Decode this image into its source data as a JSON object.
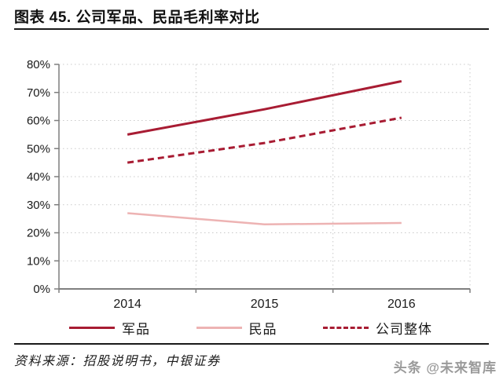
{
  "title": "图表 45. 公司军品、民品毛利率对比",
  "source_note": "资料来源：招股说明书，中银证券",
  "watermark": "头条 @未来智库",
  "colors": {
    "accent_red": "#A81C33",
    "light_pink": "#EDB3B3",
    "grid": "#C9C9C9",
    "axis": "#7F7F7F",
    "text": "#1A1A1A"
  },
  "chart_data": {
    "type": "line",
    "categories": [
      "2014",
      "2015",
      "2016"
    ],
    "series": [
      {
        "name": "军品",
        "values": [
          55,
          64,
          74
        ],
        "color": "#A81C33",
        "style": "solid",
        "width": 3
      },
      {
        "name": "民品",
        "values": [
          27,
          23,
          23.5
        ],
        "color": "#EDB3B3",
        "style": "solid",
        "width": 2.5
      },
      {
        "name": "公司整体",
        "values": [
          45,
          52,
          61
        ],
        "color": "#A81C33",
        "style": "dashed",
        "width": 3
      }
    ],
    "ylim": [
      0,
      80
    ],
    "ytick_step": 10,
    "ytick_suffix": "%",
    "grid": "dotted",
    "legend_position": "bottom"
  }
}
